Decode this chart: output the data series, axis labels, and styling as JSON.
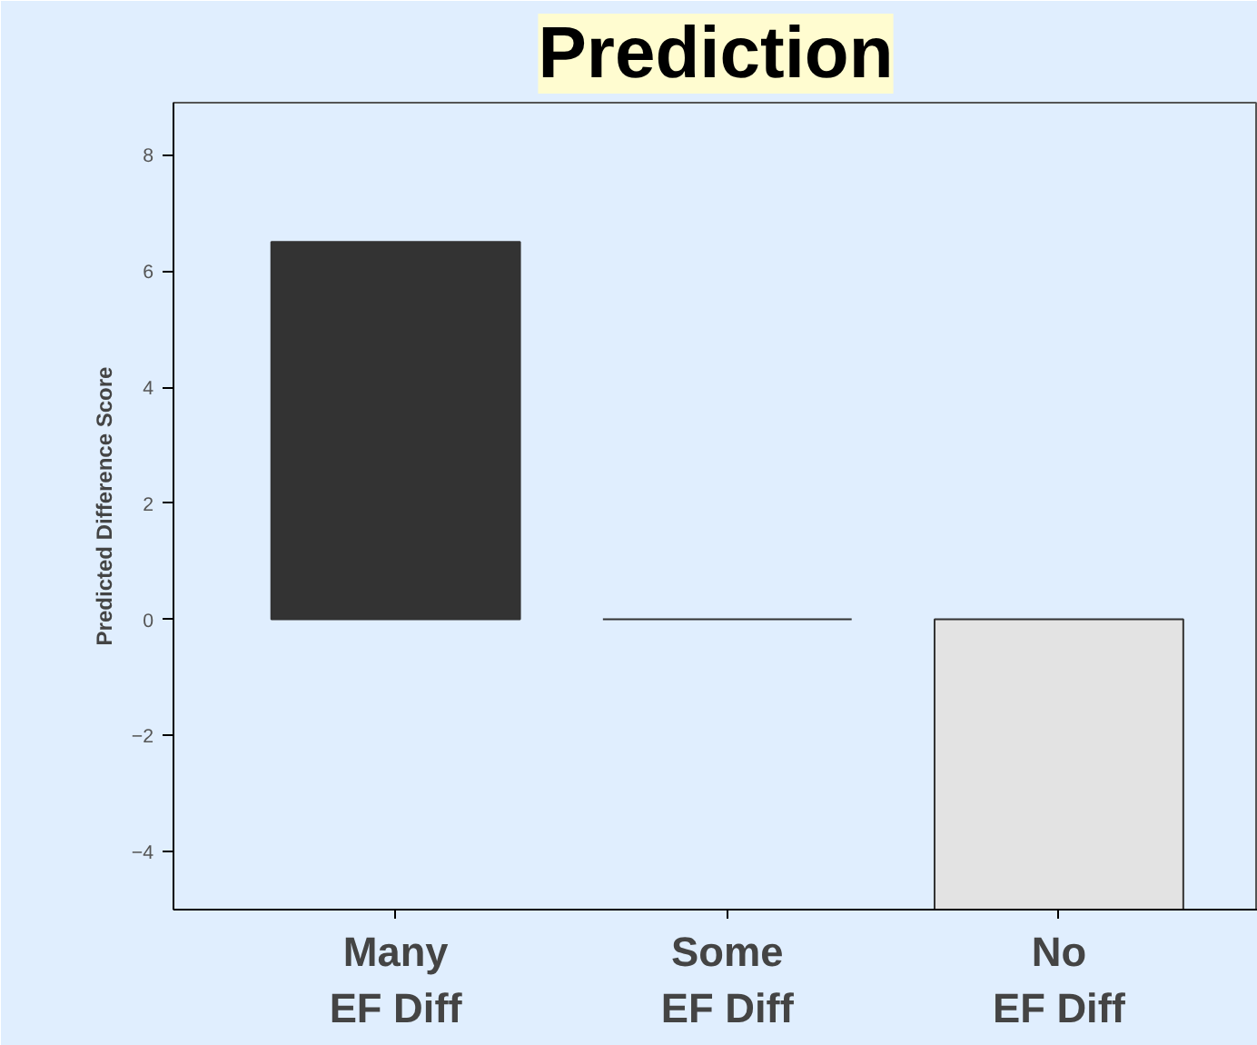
{
  "chart_data": {
    "type": "bar",
    "title": "Prediction",
    "ylabel": "Predicted Difference Score",
    "categories": [
      "Many EF Diff",
      "Some EF Diff",
      "No EF Diff"
    ],
    "values": [
      6.5,
      0,
      -5
    ],
    "colors": [
      "#333333",
      "#333333",
      "#e3e3e3"
    ],
    "ylim": [
      -5,
      8.9
    ],
    "yticks": [
      -4,
      -2,
      0,
      2,
      4,
      6,
      8
    ],
    "grid": false
  }
}
